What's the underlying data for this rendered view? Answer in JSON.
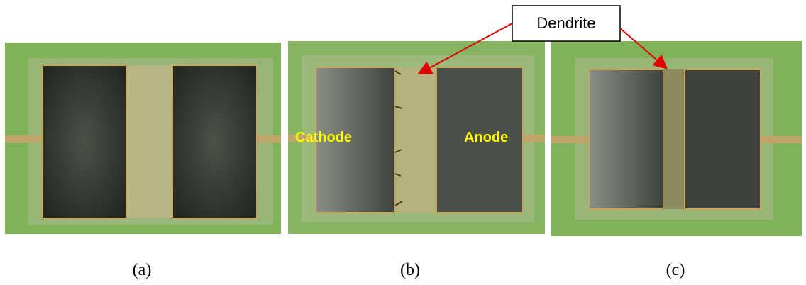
{
  "callout": {
    "label": "Dendrite"
  },
  "panels": [
    {
      "caption": "(a)"
    },
    {
      "caption": "(b)",
      "labels": [
        "Cathode",
        "Anode"
      ]
    },
    {
      "caption": "(c)"
    }
  ]
}
